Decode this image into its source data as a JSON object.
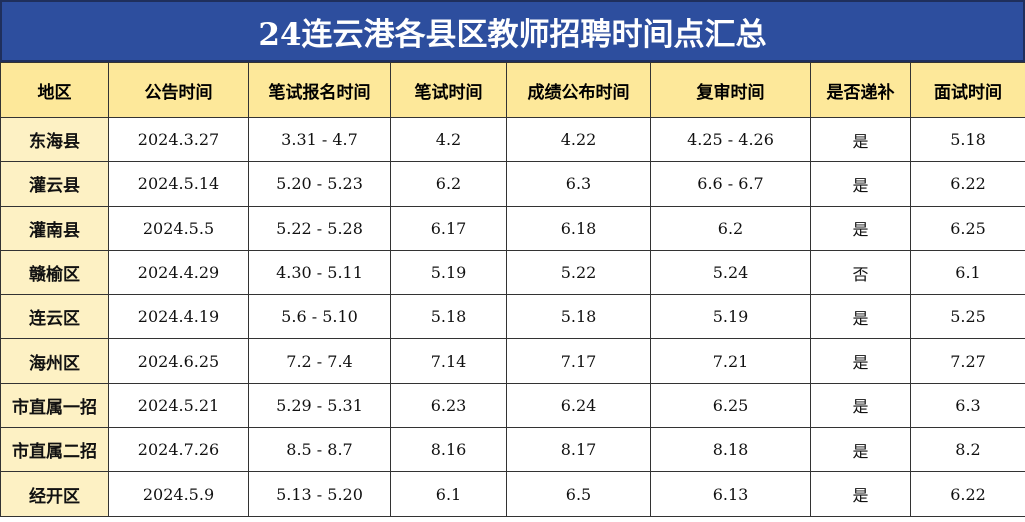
{
  "header": {
    "title": "24连云港各县区教师招聘时间点汇总"
  },
  "table": {
    "columns": [
      "地区",
      "公告时间",
      "笔试报名时间",
      "笔试时间",
      "成绩公布时间",
      "复审时间",
      "是否递补",
      "面试时间"
    ],
    "rows": [
      [
        "东海县",
        "2024.3.27",
        "3.31 - 4.7",
        "4.2",
        "4.22",
        "4.25 - 4.26",
        "是",
        "5.18"
      ],
      [
        "灌云县",
        "2024.5.14",
        "5.20 - 5.23",
        "6.2",
        "6.3",
        "6.6 - 6.7",
        "是",
        "6.22"
      ],
      [
        "灌南县",
        "2024.5.5",
        "5.22 - 5.28",
        "6.17",
        "6.18",
        "6.2",
        "是",
        "6.25"
      ],
      [
        "赣榆区",
        "2024.4.29",
        "4.30 - 5.11",
        "5.19",
        "5.22",
        "5.24",
        "否",
        "6.1"
      ],
      [
        "连云区",
        "2024.4.19",
        "5.6 - 5.10",
        "5.18",
        "5.18",
        "5.19",
        "是",
        "5.25"
      ],
      [
        "海州区",
        "2024.6.25",
        "7.2 - 7.4",
        "7.14",
        "7.17",
        "7.21",
        "是",
        "7.27"
      ],
      [
        "市直属一招",
        "2024.5.21",
        "5.29 - 5.31",
        "6.23",
        "6.24",
        "6.25",
        "是",
        "6.3"
      ],
      [
        "市直属二招",
        "2024.7.26",
        "8.5 - 8.7",
        "8.16",
        "8.17",
        "8.18",
        "是",
        "8.2"
      ],
      [
        "经开区",
        "2024.5.9",
        "5.13 - 5.20",
        "6.1",
        "6.5",
        "6.13",
        "是",
        "6.22"
      ]
    ]
  }
}
